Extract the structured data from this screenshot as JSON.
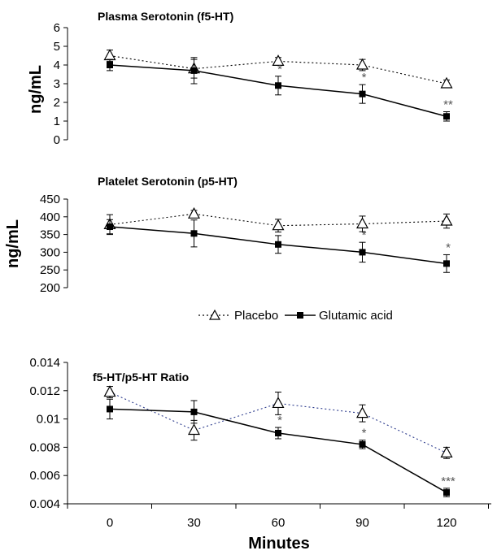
{
  "chart_data": [
    {
      "type": "line",
      "title": "Plasma Serotonin (f5-HT)",
      "ylabel": "ng/mL",
      "ylim": [
        0,
        6
      ],
      "yticks": [
        "0",
        "1",
        "2",
        "3",
        "4",
        "5",
        "6"
      ],
      "x": [
        0,
        30,
        60,
        90,
        120
      ],
      "series": [
        {
          "name": "Placebo",
          "values": [
            4.5,
            3.8,
            4.2,
            4.0,
            3.0
          ],
          "errors": [
            0.3,
            0.5,
            0.2,
            0.3,
            0.2
          ]
        },
        {
          "name": "Glutamic acid",
          "values": [
            4.0,
            3.7,
            2.9,
            2.45,
            1.25
          ],
          "errors": [
            0.3,
            0.7,
            0.5,
            0.5,
            0.25
          ]
        }
      ],
      "annotations": [
        {
          "x": 60,
          "series": "Glutamic acid",
          "text": "*"
        },
        {
          "x": 90,
          "series": "Glutamic acid",
          "text": "*"
        },
        {
          "x": 120,
          "series": "Glutamic acid",
          "text": "**"
        }
      ]
    },
    {
      "type": "line",
      "title": "Platelet Serotonin (p5-HT)",
      "ylabel": "ng/mL",
      "ylim": [
        200,
        450
      ],
      "yticks": [
        "200",
        "250",
        "300",
        "350",
        "400",
        "450"
      ],
      "x": [
        0,
        30,
        60,
        90,
        120
      ],
      "series": [
        {
          "name": "Placebo",
          "values": [
            378,
            408,
            375,
            380,
            388
          ],
          "errors": [
            28,
            10,
            18,
            22,
            20
          ]
        },
        {
          "name": "Glutamic acid",
          "values": [
            372,
            353,
            322,
            300,
            268
          ],
          "errors": [
            20,
            38,
            25,
            28,
            25
          ]
        }
      ],
      "annotations": [
        {
          "x": 90,
          "series": "Glutamic acid",
          "text": "*"
        },
        {
          "x": 120,
          "series": "Glutamic acid",
          "text": "*"
        }
      ]
    },
    {
      "type": "line",
      "title": "f5-HT/p5-HT Ratio",
      "xlabel": "Minutes",
      "ylim": [
        0.004,
        0.014
      ],
      "yticks": [
        "0.004",
        "0.006",
        "0.008",
        "0.01",
        "0.012",
        "0.014"
      ],
      "xticks": [
        "0",
        "30",
        "60",
        "90",
        "120"
      ],
      "x": [
        0,
        30,
        60,
        90,
        120
      ],
      "series": [
        {
          "name": "Placebo",
          "values": [
            0.0119,
            0.0092,
            0.0111,
            0.0104,
            0.0076
          ],
          "errors": [
            0.0004,
            0.0007,
            0.0008,
            0.0006,
            0.0004
          ]
        },
        {
          "name": "Glutamic acid",
          "values": [
            0.0107,
            0.0105,
            0.009,
            0.0082,
            0.0048
          ],
          "errors": [
            0.0007,
            0.0008,
            0.0004,
            0.0003,
            0.0003
          ]
        }
      ],
      "annotations": [
        {
          "x": 60,
          "series": "Glutamic acid",
          "text": "*"
        },
        {
          "x": 90,
          "series": "Glutamic acid",
          "text": "*"
        },
        {
          "x": 120,
          "series": "Glutamic acid",
          "text": "***"
        }
      ]
    }
  ],
  "legend": {
    "items": [
      "Placebo",
      "Glutamic acid"
    ],
    "placement": "between-panels"
  },
  "colors": {
    "placebo_line": "#000000",
    "placebo_line_ratio": "#2b3a8c",
    "glutamic_line": "#000000",
    "significance": "#555555"
  },
  "markers": {
    "Placebo": "open-triangle",
    "Glutamic acid": "filled-square"
  }
}
